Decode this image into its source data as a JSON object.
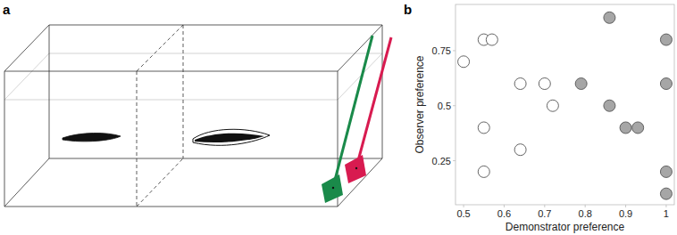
{
  "panel_labels": [
    "a",
    "b"
  ],
  "chart_data": {
    "type": "scatter",
    "x_label": "Demonstrator preference",
    "y_label": "Observer preference",
    "xlim": [
      0.48,
      1.02
    ],
    "xticks": [
      0.5,
      0.6,
      0.7,
      0.8,
      0.9,
      1
    ],
    "ylim": [
      0.05,
      0.96
    ],
    "yticks": [
      0.25,
      0.5,
      0.75
    ],
    "marker": "circle",
    "series": [
      {
        "color": "#ffffff",
        "x": [
          0.5,
          0.55,
          0.57,
          0.55,
          0.55,
          0.64,
          0.64,
          0.7,
          0.72
        ],
        "values": [
          0.7,
          0.8,
          0.8,
          0.4,
          0.2,
          0.6,
          0.3,
          0.6,
          0.5
        ]
      },
      {
        "color": "#a6a6a6",
        "x": [
          0.79,
          0.86,
          0.86,
          0.9,
          0.93,
          1,
          1,
          1,
          1
        ],
        "values": [
          0.6,
          0.9,
          0.5,
          0.4,
          0.4,
          0.8,
          0.6,
          0.2,
          0.1
        ]
      }
    ]
  }
}
